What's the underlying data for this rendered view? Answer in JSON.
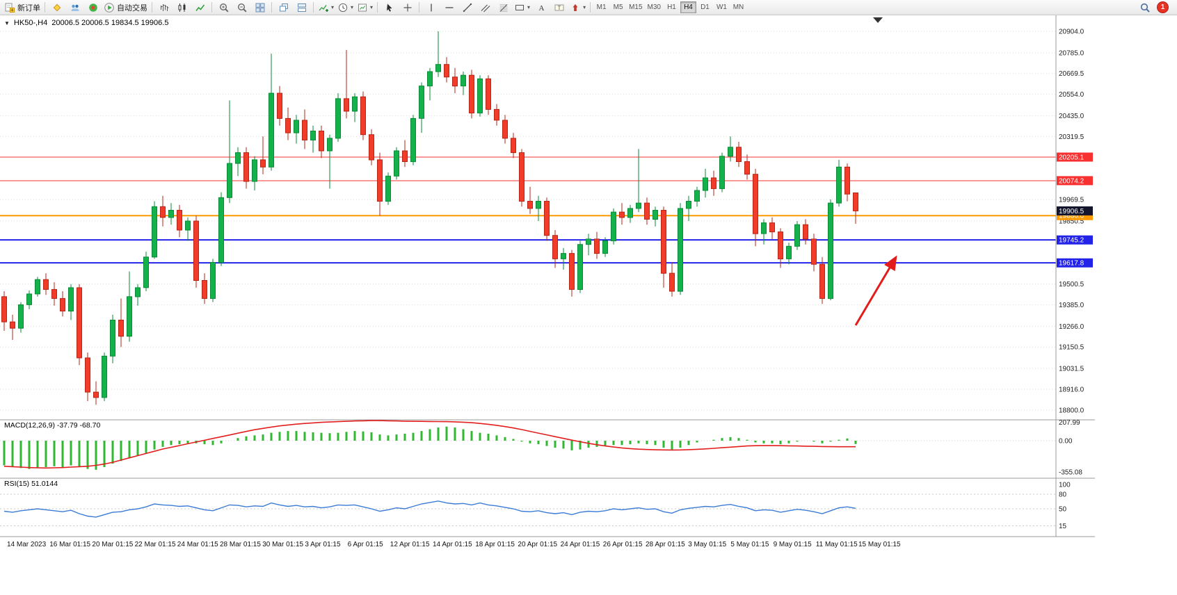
{
  "toolbar": {
    "new_order_label": "新订单",
    "autotrade_label": "自动交易",
    "timeframes": [
      "M1",
      "M5",
      "M15",
      "M30",
      "H1",
      "H4",
      "D1",
      "W1",
      "MN"
    ],
    "active_timeframe": "H4",
    "notification_count": "1"
  },
  "icons": {
    "new_order": "doc-plus",
    "metaeditor": "yellow-diamond",
    "community": "people",
    "marketplace": "globe-target",
    "autotrade": "play-circle",
    "bar_chart": "ohlc-bars",
    "candles": "candlesticks",
    "line_chart": "polyline",
    "zoom_in": "magnifier-plus",
    "zoom_out": "magnifier-minus",
    "tile": "grid-2x2",
    "cascade": "stacked-windows",
    "indicators": "chart-plus",
    "periods": "clock",
    "templates": "chart-sheet",
    "cursor": "arrow-pointer",
    "crosshair": "cross",
    "vline": "vertical-line",
    "hline": "horizontal-line",
    "trendline": "diagonal-line",
    "channel": "parallel-lines",
    "fibonacci": "fib-retracement",
    "shapes": "rectangle",
    "text": "letter-A",
    "label_tool": "text-label",
    "arrows_tool": "arrow-marker",
    "search": "magnifier",
    "notification": "badge-count",
    "chart_marker": "down-triangle"
  },
  "chart_data": [
    {
      "type": "candlestick",
      "title": "HK50-,H4",
      "ohlc": "20006.5 20006.5 19834.5 19906.5",
      "ylim": [
        18800,
        20904
      ],
      "grid": "horizontal-dotted",
      "y_ticks": [
        "20904.0",
        "20785.0",
        "20669.5",
        "20554.0",
        "20435.0",
        "20319.5",
        "19969.5",
        "19850.5",
        "19500.5",
        "19385.0",
        "19266.0",
        "19150.5",
        "19031.5",
        "18916.0",
        "18800.0"
      ],
      "levels": [
        {
          "label": "20205.1",
          "value": 20205.1,
          "color": "#f93030",
          "width": 1
        },
        {
          "label": "20074.2",
          "value": 20074.2,
          "color": "#f93030",
          "width": 1
        },
        {
          "label": "19880.0",
          "value": 19880.0,
          "color": "#ff9900",
          "width": 2
        },
        {
          "label": "19745.2",
          "value": 19745.2,
          "color": "#2222e8",
          "width": 2
        },
        {
          "label": "19617.8",
          "value": 19617.8,
          "color": "#2222e8",
          "width": 2
        }
      ],
      "current_price": {
        "label": "19906.5",
        "value": 19906.5,
        "color": "#14142d"
      },
      "x_labels": [
        "14 Mar 2023",
        "16 Mar 01:15",
        "20 Mar 01:15",
        "22 Mar 01:15",
        "24 Mar 01:15",
        "28 Mar 01:15",
        "30 Mar 01:15",
        "3 Apr 01:15",
        "6 Apr 01:15",
        "12 Apr 01:15",
        "14 Apr 01:15",
        "18 Apr 01:15",
        "20 Apr 01:15",
        "24 Apr 01:15",
        "26 Apr 01:15",
        "28 Apr 01:15",
        "3 May 01:15",
        "5 May 01:15",
        "9 May 01:15",
        "11 May 01:15",
        "15 May 01:15"
      ],
      "colors": {
        "up": "#13b24b",
        "up_stroke": "#0a8a36",
        "down": "#f23b28",
        "down_stroke": "#b52616"
      },
      "annotation": {
        "type": "up-arrow",
        "color": "#e21b1b"
      },
      "marker": "▼",
      "candles": [
        [
          19430,
          19460,
          19240,
          19290
        ],
        [
          19290,
          19330,
          19190,
          19255
        ],
        [
          19255,
          19400,
          19230,
          19385
        ],
        [
          19385,
          19465,
          19360,
          19445
        ],
        [
          19445,
          19540,
          19430,
          19525
        ],
        [
          19525,
          19560,
          19440,
          19470
        ],
        [
          19470,
          19510,
          19380,
          19420
        ],
        [
          19420,
          19460,
          19320,
          19350
        ],
        [
          19350,
          19500,
          19300,
          19480
        ],
        [
          19480,
          19500,
          19050,
          19090
        ],
        [
          19090,
          19120,
          18850,
          18900
        ],
        [
          18900,
          18960,
          18830,
          18870
        ],
        [
          18870,
          19120,
          18850,
          19100
        ],
        [
          19100,
          19330,
          19060,
          19300
        ],
        [
          19300,
          19420,
          19150,
          19210
        ],
        [
          19210,
          19570,
          19180,
          19430
        ],
        [
          19430,
          19500,
          19380,
          19480
        ],
        [
          19480,
          19680,
          19460,
          19650
        ],
        [
          19650,
          19960,
          19640,
          19930
        ],
        [
          19930,
          19990,
          19820,
          19870
        ],
        [
          19870,
          19950,
          19830,
          19910
        ],
        [
          19910,
          19940,
          19760,
          19800
        ],
        [
          19800,
          19870,
          19740,
          19850
        ],
        [
          19850,
          19880,
          19480,
          19520
        ],
        [
          19520,
          19560,
          19390,
          19420
        ],
        [
          19420,
          19640,
          19400,
          19620
        ],
        [
          19620,
          20010,
          19600,
          19980
        ],
        [
          19980,
          20520,
          19950,
          20170
        ],
        [
          20170,
          20260,
          20100,
          20230
        ],
        [
          20230,
          20260,
          20030,
          20070
        ],
        [
          20070,
          20210,
          20020,
          20190
        ],
        [
          20190,
          20320,
          20110,
          20150
        ],
        [
          20150,
          20780,
          20130,
          20560
        ],
        [
          20560,
          20600,
          20380,
          20420
        ],
        [
          20420,
          20480,
          20300,
          20340
        ],
        [
          20340,
          20440,
          20280,
          20410
        ],
        [
          20410,
          20470,
          20250,
          20300
        ],
        [
          20300,
          20380,
          20230,
          20350
        ],
        [
          20350,
          20380,
          20200,
          20240
        ],
        [
          20240,
          20330,
          20030,
          20310
        ],
        [
          20310,
          20560,
          20290,
          20530
        ],
        [
          20530,
          20800,
          20420,
          20460
        ],
        [
          20460,
          20560,
          20400,
          20540
        ],
        [
          20540,
          20570,
          20300,
          20330
        ],
        [
          20330,
          20360,
          20160,
          20190
        ],
        [
          20190,
          20230,
          19880,
          19960
        ],
        [
          19960,
          20120,
          19940,
          20100
        ],
        [
          20100,
          20260,
          20080,
          20240
        ],
        [
          20240,
          20300,
          20150,
          20180
        ],
        [
          20180,
          20440,
          20160,
          20420
        ],
        [
          20420,
          20620,
          20340,
          20600
        ],
        [
          20600,
          20700,
          20520,
          20680
        ],
        [
          20680,
          20904,
          20650,
          20720
        ],
        [
          20720,
          20760,
          20620,
          20650
        ],
        [
          20650,
          20700,
          20560,
          20600
        ],
        [
          20600,
          20680,
          20550,
          20660
        ],
        [
          20660,
          20690,
          20420,
          20450
        ],
        [
          20450,
          20660,
          20430,
          20640
        ],
        [
          20640,
          20660,
          20440,
          20470
        ],
        [
          20470,
          20500,
          20380,
          20410
        ],
        [
          20410,
          20440,
          20280,
          20310
        ],
        [
          20310,
          20340,
          20200,
          20230
        ],
        [
          20230,
          20250,
          19930,
          19960
        ],
        [
          19960,
          20040,
          19890,
          19920
        ],
        [
          19920,
          19990,
          19850,
          19960
        ],
        [
          19960,
          19980,
          19740,
          19770
        ],
        [
          19770,
          19800,
          19590,
          19640
        ],
        [
          19640,
          19700,
          19580,
          19670
        ],
        [
          19670,
          19690,
          19430,
          19470
        ],
        [
          19470,
          19740,
          19450,
          19720
        ],
        [
          19720,
          19780,
          19660,
          19750
        ],
        [
          19750,
          19790,
          19640,
          19670
        ],
        [
          19670,
          19760,
          19650,
          19740
        ],
        [
          19740,
          19920,
          19720,
          19900
        ],
        [
          19900,
          19950,
          19830,
          19870
        ],
        [
          19870,
          19940,
          19840,
          19920
        ],
        [
          19920,
          20250,
          19900,
          19950
        ],
        [
          19950,
          19980,
          19830,
          19860
        ],
        [
          19860,
          19930,
          19820,
          19910
        ],
        [
          19910,
          19930,
          19480,
          19560
        ],
        [
          19560,
          19620,
          19430,
          19460
        ],
        [
          19460,
          19950,
          19440,
          19920
        ],
        [
          19920,
          19990,
          19850,
          19960
        ],
        [
          19960,
          20040,
          19930,
          20020
        ],
        [
          20020,
          20140,
          19980,
          20090
        ],
        [
          20090,
          20130,
          19990,
          20030
        ],
        [
          20030,
          20230,
          20010,
          20210
        ],
        [
          20210,
          20320,
          20180,
          20260
        ],
        [
          20260,
          20290,
          20150,
          20180
        ],
        [
          20180,
          20220,
          20080,
          20110
        ],
        [
          20110,
          20140,
          19710,
          19780
        ],
        [
          19780,
          19860,
          19720,
          19840
        ],
        [
          19840,
          19870,
          19750,
          19790
        ],
        [
          19790,
          19810,
          19590,
          19640
        ],
        [
          19640,
          19730,
          19610,
          19710
        ],
        [
          19710,
          19850,
          19690,
          19830
        ],
        [
          19830,
          19860,
          19720,
          19750
        ],
        [
          19750,
          19780,
          19570,
          19610
        ],
        [
          19610,
          19650,
          19390,
          19420
        ],
        [
          19420,
          19970,
          19410,
          19950
        ],
        [
          19950,
          20190,
          19930,
          20150
        ],
        [
          20150,
          20170,
          19960,
          20000
        ],
        [
          20006.5,
          20006.5,
          19834.5,
          19906.5
        ]
      ]
    },
    {
      "type": "bar",
      "name": "MACD",
      "label": "MACD(12,26,9) -37.79 -68.70",
      "y_ticks": [
        {
          "label": "207.99",
          "value": 207.99
        },
        {
          "label": "0.00",
          "value": 0
        },
        {
          "label": "-355.08",
          "value": -355.08
        }
      ],
      "colors": {
        "histogram": "#2fb830",
        "signal": "#e31e1e"
      },
      "values": [
        -280,
        -300,
        -310,
        -320,
        -310,
        -300,
        -290,
        -300,
        -280,
        -300,
        -320,
        -330,
        -300,
        -260,
        -230,
        -200,
        -170,
        -140,
        -100,
        -70,
        -50,
        -40,
        -30,
        -30,
        -40,
        -50,
        -30,
        0,
        30,
        50,
        60,
        70,
        90,
        100,
        110,
        110,
        100,
        95,
        90,
        85,
        90,
        100,
        110,
        105,
        95,
        70,
        60,
        70,
        80,
        90,
        110,
        130,
        150,
        160,
        150,
        130,
        110,
        90,
        80,
        60,
        40,
        20,
        -10,
        -30,
        -40,
        -60,
        -80,
        -90,
        -110,
        -100,
        -80,
        -70,
        -60,
        -50,
        -50,
        -40,
        -30,
        -40,
        -50,
        -80,
        -100,
        -80,
        -50,
        -20,
        0,
        10,
        30,
        40,
        30,
        10,
        -20,
        -30,
        -30,
        -40,
        -30,
        -10,
        0,
        -10,
        -30,
        -10,
        10,
        25,
        -38
      ],
      "signal": [
        -290,
        -295,
        -300,
        -305,
        -308,
        -310,
        -308,
        -305,
        -300,
        -295,
        -290,
        -280,
        -265,
        -245,
        -220,
        -195,
        -170,
        -145,
        -120,
        -95,
        -75,
        -55,
        -35,
        -15,
        5,
        25,
        45,
        65,
        85,
        105,
        125,
        140,
        155,
        168,
        178,
        188,
        196,
        202,
        208,
        212,
        216,
        220,
        224,
        226,
        228,
        228,
        226,
        224,
        222,
        220,
        219,
        218,
        217,
        216,
        214,
        210,
        204,
        196,
        186,
        174,
        160,
        144,
        126,
        106,
        86,
        66,
        46,
        26,
        6,
        -12,
        -30,
        -46,
        -60,
        -72,
        -82,
        -90,
        -96,
        -100,
        -103,
        -105,
        -106,
        -105,
        -102,
        -98,
        -93,
        -87,
        -80,
        -73,
        -66,
        -60,
        -57,
        -56,
        -56,
        -57,
        -58,
        -60,
        -62,
        -64,
        -66,
        -68,
        -69,
        -69,
        -69
      ]
    },
    {
      "type": "line",
      "name": "RSI",
      "label": "RSI(15) 51.0144",
      "y_ticks": [
        {
          "label": "100",
          "value": 100
        },
        {
          "label": "80",
          "value": 80
        },
        {
          "label": "50",
          "value": 50
        },
        {
          "label": "15",
          "value": 15
        }
      ],
      "levels": [
        80,
        50,
        15
      ],
      "color": "#3a7bd5",
      "values": [
        45,
        43,
        46,
        48,
        50,
        48,
        46,
        44,
        47,
        40,
        35,
        33,
        38,
        43,
        44,
        48,
        50,
        54,
        60,
        58,
        57,
        55,
        56,
        52,
        48,
        46,
        52,
        58,
        57,
        54,
        56,
        55,
        62,
        58,
        55,
        57,
        54,
        55,
        52,
        54,
        58,
        57,
        58,
        54,
        50,
        45,
        48,
        52,
        50,
        55,
        60,
        63,
        66,
        62,
        60,
        61,
        58,
        62,
        58,
        56,
        53,
        50,
        45,
        44,
        46,
        42,
        40,
        42,
        38,
        43,
        45,
        44,
        46,
        50,
        48,
        50,
        52,
        49,
        50,
        44,
        41,
        48,
        51,
        53,
        55,
        54,
        57,
        59,
        55,
        52,
        46,
        48,
        47,
        43,
        46,
        49,
        47,
        44,
        40,
        46,
        52,
        54,
        51
      ]
    }
  ]
}
